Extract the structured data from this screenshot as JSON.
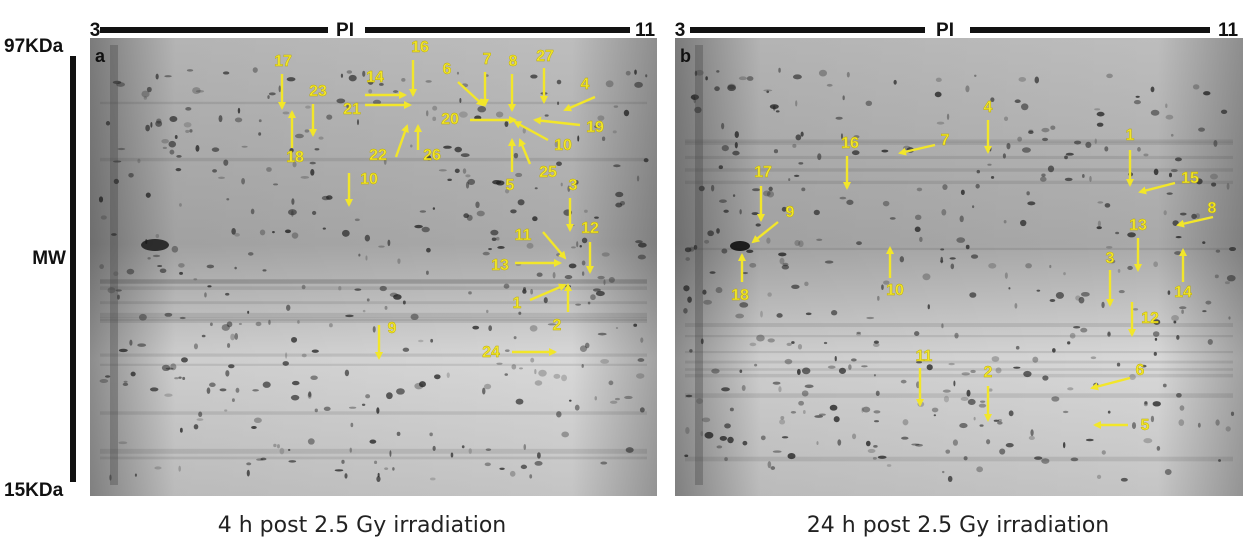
{
  "axis": {
    "top": "97KDa",
    "middle": "MW",
    "bottom": "15KDa"
  },
  "panels": [
    {
      "label": "a",
      "pi_low": "3",
      "pi_title": "PI",
      "pi_high": "11",
      "caption": "4 h post 2.5 Gy irradiation",
      "spots": [
        "17",
        "23",
        "18",
        "16",
        "14",
        "21",
        "22",
        "26",
        "6",
        "7",
        "8",
        "27",
        "4",
        "20",
        "19",
        "10",
        "5",
        "25",
        "10",
        "3",
        "11",
        "12",
        "13",
        "1",
        "2",
        "9",
        "24"
      ]
    },
    {
      "label": "b",
      "pi_low": "3",
      "pi_title": "PI",
      "pi_high": "11",
      "caption": "24 h post 2.5 Gy irradiation",
      "spots": [
        "4",
        "7",
        "16",
        "1",
        "15",
        "17",
        "9",
        "8",
        "13",
        "18",
        "10",
        "3",
        "14",
        "12",
        "11",
        "2",
        "6",
        "5"
      ]
    }
  ]
}
